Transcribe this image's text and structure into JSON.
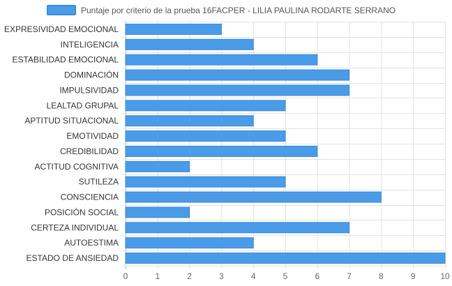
{
  "chart_data": {
    "type": "bar",
    "orientation": "horizontal",
    "series": [
      {
        "name": "Puntaje por criterio de la prueba 16FACPER - LILIA PAULINA RODARTE SERRANO",
        "values": [
          3,
          4,
          6,
          7,
          7,
          5,
          4,
          5,
          6,
          2,
          5,
          8,
          2,
          7,
          4,
          10
        ]
      }
    ],
    "categories": [
      "EXPRESIVIDAD EMOCIONAL",
      "INTELIGENCIA",
      "ESTABILIDAD EMOCIONAL",
      "DOMINACIÓN",
      "IMPULSIVIDAD",
      "LEALTAD GRUPAL",
      "APTITUD SITUACIONAL",
      "EMOTIVIDAD",
      "CREDIBILIDAD",
      "ACTITUD COGNITIVA",
      "SUTILEZA",
      "CONSCIENCIA",
      "POSICIÓN SOCIAL",
      "CERTEZA INDIVIDUAL",
      "AUTOESTIMA",
      "ESTADO DE ANSIEDAD"
    ],
    "xlim": [
      0,
      10
    ],
    "x_ticks": [
      "0",
      "1",
      "2",
      "3",
      "4",
      "5",
      "6",
      "7",
      "8",
      "9",
      "10"
    ],
    "grid": true,
    "legend_position": "top-center",
    "colors": {
      "bar_fill": "#4a9be8",
      "bar_stroke": "#3a8ad8",
      "grid": "#e2e2e2"
    }
  }
}
